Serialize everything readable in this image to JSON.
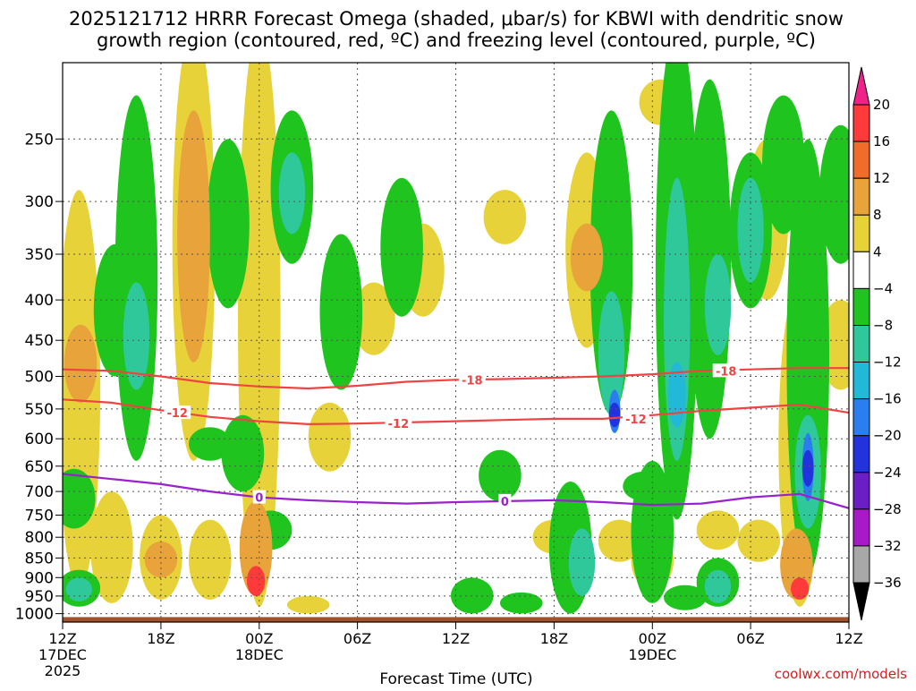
{
  "chart_data": {
    "type": "heatmap",
    "title_lines": [
      "2025121712 HRRR Forecast Omega (shaded, μbar/s) for KBWI with dendritic snow",
      "growth region (contoured, red, ºC) and freezing level (contoured, purple, ºC)"
    ],
    "xlabel": "Forecast Time (UTC)",
    "y_axis_scale": "log-pressure",
    "ylim_hpa": [
      1025,
      200
    ],
    "y_ticks": [
      250,
      300,
      350,
      400,
      450,
      500,
      550,
      600,
      650,
      700,
      750,
      800,
      850,
      900,
      950,
      1000
    ],
    "x_range_hours": [
      0,
      48
    ],
    "x_ticks": [
      {
        "hour": 0,
        "label": "12Z",
        "sub1": "17DEC",
        "sub2": "2025"
      },
      {
        "hour": 6,
        "label": "18Z",
        "sub1": "",
        "sub2": ""
      },
      {
        "hour": 12,
        "label": "00Z",
        "sub1": "18DEC",
        "sub2": ""
      },
      {
        "hour": 18,
        "label": "06Z",
        "sub1": "",
        "sub2": ""
      },
      {
        "hour": 24,
        "label": "12Z",
        "sub1": "",
        "sub2": ""
      },
      {
        "hour": 30,
        "label": "18Z",
        "sub1": "",
        "sub2": ""
      },
      {
        "hour": 36,
        "label": "00Z",
        "sub1": "19DEC",
        "sub2": ""
      },
      {
        "hour": 42,
        "label": "06Z",
        "sub1": "",
        "sub2": ""
      },
      {
        "hour": 48,
        "label": "12Z",
        "sub1": "",
        "sub2": ""
      }
    ],
    "grid": true,
    "colorbar": {
      "labels": [
        "20",
        "16",
        "12",
        "8",
        "4",
        "−4",
        "−8",
        "−12",
        "−16",
        "−20",
        "−24",
        "−28",
        "−32",
        "−36"
      ],
      "colors": [
        "#ff3a3a",
        "#ef6c2a",
        "#e8a33a",
        "#e8d23a",
        "#ffffff",
        "#1fc41f",
        "#2ec89a",
        "#22b8d8",
        "#2a7ef0",
        "#2233dd",
        "#6a1fc4",
        "#a81ac8",
        "#a8a8a8"
      ],
      "top_arrow_color": "#ee2288",
      "bottom_arrow_color": "#000000"
    },
    "contours": [
      {
        "label": "-18",
        "color": "#ee4444",
        "points": [
          [
            0,
            490
          ],
          [
            3,
            492
          ],
          [
            6,
            500
          ],
          [
            9,
            510
          ],
          [
            12,
            515
          ],
          [
            15,
            518
          ],
          [
            18,
            514
          ],
          [
            21,
            508
          ],
          [
            24,
            505
          ],
          [
            27,
            504
          ],
          [
            30,
            502
          ],
          [
            33,
            500
          ],
          [
            36,
            497
          ],
          [
            39,
            492
          ],
          [
            42,
            490
          ],
          [
            45,
            488
          ],
          [
            48,
            488
          ]
        ]
      },
      {
        "label": "-12",
        "color": "#ee4444",
        "points": [
          [
            0,
            535
          ],
          [
            3,
            540
          ],
          [
            6,
            552
          ],
          [
            9,
            563
          ],
          [
            12,
            570
          ],
          [
            15,
            575
          ],
          [
            18,
            574
          ],
          [
            21,
            572
          ],
          [
            24,
            570
          ],
          [
            27,
            568
          ],
          [
            30,
            566
          ],
          [
            33,
            566
          ],
          [
            36,
            560
          ],
          [
            39,
            553
          ],
          [
            42,
            548
          ],
          [
            45,
            543
          ],
          [
            48,
            556
          ]
        ]
      },
      {
        "label": "0",
        "color": "#9922cc",
        "points": [
          [
            0,
            665
          ],
          [
            3,
            675
          ],
          [
            6,
            685
          ],
          [
            9,
            700
          ],
          [
            12,
            712
          ],
          [
            15,
            718
          ],
          [
            18,
            722
          ],
          [
            21,
            725
          ],
          [
            24,
            722
          ],
          [
            27,
            720
          ],
          [
            30,
            718
          ],
          [
            33,
            722
          ],
          [
            36,
            728
          ],
          [
            39,
            725
          ],
          [
            42,
            712
          ],
          [
            45,
            705
          ],
          [
            48,
            735
          ]
        ]
      }
    ],
    "contour_label_positions": [
      {
        "label": "-18",
        "hour": 25,
        "hpa": 505
      },
      {
        "label": "-18",
        "hour": 40.5,
        "hpa": 492
      },
      {
        "label": "-12",
        "hour": 7,
        "hpa": 556
      },
      {
        "label": "-12",
        "hour": 20.5,
        "hpa": 574
      },
      {
        "label": "-12",
        "hour": 35,
        "hpa": 566
      },
      {
        "label": "0",
        "hour": 12,
        "hpa": 712
      },
      {
        "label": "0",
        "hour": 27,
        "hpa": 720
      }
    ],
    "omega_regions_ubar_s": [
      {
        "value": 6,
        "hour": 1,
        "hpa": [
          290,
          930
        ]
      },
      {
        "value": 9,
        "hour": 1.1,
        "hpa": [
          430,
          540
        ]
      },
      {
        "value": -8,
        "hour": 0.7,
        "hpa": [
          655,
          780
        ]
      },
      {
        "value": -8,
        "hour": 1,
        "hpa": [
          880,
          980
        ]
      },
      {
        "value": -12,
        "hour": 1,
        "hpa": [
          900,
          965
        ]
      },
      {
        "value": 6,
        "hour": 3,
        "hpa": [
          700,
          970
        ]
      },
      {
        "value": -8,
        "hour": 3.2,
        "hpa": [
          340,
          500
        ]
      },
      {
        "value": -8,
        "hour": 4.5,
        "hpa": [
          220,
          640
        ]
      },
      {
        "value": -12,
        "hour": 4.5,
        "hpa": [
          380,
          520
        ]
      },
      {
        "value": 6,
        "hour": 6,
        "hpa": [
          750,
          960
        ]
      },
      {
        "value": 10,
        "hour": 6,
        "hpa": [
          810,
          900
        ]
      },
      {
        "value": 6,
        "hour": 8,
        "hpa": [
          180,
          640
        ]
      },
      {
        "value": 9,
        "hour": 8,
        "hpa": [
          230,
          480
        ]
      },
      {
        "value": -8,
        "hour": 9,
        "hpa": [
          580,
          640
        ]
      },
      {
        "value": 6,
        "hour": 9,
        "hpa": [
          760,
          960
        ]
      },
      {
        "value": -8,
        "hour": 10.1,
        "hpa": [
          250,
          410
        ]
      },
      {
        "value": -8,
        "hour": 11,
        "hpa": [
          560,
          700
        ]
      },
      {
        "value": 6,
        "hour": 12,
        "hpa": [
          180,
          980
        ]
      },
      {
        "value": 10,
        "hour": 11.8,
        "hpa": [
          720,
          950
        ]
      },
      {
        "value": 18,
        "hour": 11.8,
        "hpa": [
          870,
          950
        ]
      },
      {
        "value": -8,
        "hour": 14,
        "hpa": [
          230,
          360
        ]
      },
      {
        "value": -12,
        "hour": 14,
        "hpa": [
          260,
          330
        ]
      },
      {
        "value": -8,
        "hour": 12.7,
        "hpa": [
          740,
          830
        ]
      },
      {
        "value": 6,
        "hour": 15,
        "hpa": [
          950,
          1000
        ]
      },
      {
        "value": -8,
        "hour": 17,
        "hpa": [
          330,
          520
        ]
      },
      {
        "value": 6,
        "hour": 16.3,
        "hpa": [
          540,
          660
        ]
      },
      {
        "value": 6,
        "hour": 19,
        "hpa": [
          380,
          470
        ]
      },
      {
        "value": -8,
        "hour": 20.7,
        "hpa": [
          280,
          420
        ]
      },
      {
        "value": 6,
        "hour": 22,
        "hpa": [
          320,
          420
        ]
      },
      {
        "value": -8,
        "hour": 25,
        "hpa": [
          900,
          1000
        ]
      },
      {
        "value": -8,
        "hour": 26.7,
        "hpa": [
          620,
          720
        ]
      },
      {
        "value": 6,
        "hour": 27,
        "hpa": [
          290,
          340
        ]
      },
      {
        "value": -8,
        "hour": 28,
        "hpa": [
          940,
          1000
        ]
      },
      {
        "value": 6,
        "hour": 30,
        "hpa": [
          760,
          840
        ]
      },
      {
        "value": -8,
        "hour": 31,
        "hpa": [
          680,
          1000
        ]
      },
      {
        "value": -12,
        "hour": 31.7,
        "hpa": [
          780,
          950
        ]
      },
      {
        "value": 6,
        "hour": 32,
        "hpa": [
          260,
          460
        ]
      },
      {
        "value": 10,
        "hour": 32,
        "hpa": [
          320,
          390
        ]
      },
      {
        "value": -8,
        "hour": 33.5,
        "hpa": [
          230,
          560
        ]
      },
      {
        "value": -12,
        "hour": 33.5,
        "hpa": [
          390,
          560
        ]
      },
      {
        "value": -20,
        "hour": 33.7,
        "hpa": [
          520,
          590
        ]
      },
      {
        "value": -24,
        "hour": 33.7,
        "hpa": [
          540,
          580
        ]
      },
      {
        "value": 6,
        "hour": 34,
        "hpa": [
          760,
          860
        ]
      },
      {
        "value": -8,
        "hour": 35.5,
        "hpa": [
          660,
          720
        ]
      },
      {
        "value": -8,
        "hour": 36,
        "hpa": [
          640,
          970
        ]
      },
      {
        "value": 6,
        "hour": 36,
        "hpa": [
          790,
          930
        ]
      },
      {
        "value": 6,
        "hour": 36.5,
        "hpa": [
          210,
          240
        ]
      },
      {
        "value": -8,
        "hour": 37.5,
        "hpa": [
          180,
          760
        ]
      },
      {
        "value": -12,
        "hour": 37.5,
        "hpa": [
          280,
          640
        ]
      },
      {
        "value": -16,
        "hour": 37.5,
        "hpa": [
          480,
          580
        ]
      },
      {
        "value": -8,
        "hour": 39.5,
        "hpa": [
          210,
          600
        ]
      },
      {
        "value": -12,
        "hour": 40,
        "hpa": [
          350,
          470
        ]
      },
      {
        "value": -8,
        "hour": 42,
        "hpa": [
          260,
          410
        ]
      },
      {
        "value": -12,
        "hour": 42,
        "hpa": [
          280,
          380
        ]
      },
      {
        "value": -8,
        "hour": 40,
        "hpa": [
          850,
          980
        ]
      },
      {
        "value": -12,
        "hour": 40,
        "hpa": [
          880,
          970
        ]
      },
      {
        "value": -8,
        "hour": 38,
        "hpa": [
          920,
          990
        ]
      },
      {
        "value": 6,
        "hour": 40,
        "hpa": [
          740,
          830
        ]
      },
      {
        "value": 6,
        "hour": 42.5,
        "hpa": [
          760,
          860
        ]
      },
      {
        "value": 6,
        "hour": 43,
        "hpa": [
          250,
          400
        ]
      },
      {
        "value": -8,
        "hour": 44,
        "hpa": [
          220,
          330
        ]
      },
      {
        "value": 6,
        "hour": 45,
        "hpa": [
          380,
          980
        ]
      },
      {
        "value": 10,
        "hour": 44.8,
        "hpa": [
          780,
          960
        ]
      },
      {
        "value": 18,
        "hour": 45,
        "hpa": [
          900,
          960
        ]
      },
      {
        "value": -8,
        "hour": 45.5,
        "hpa": [
          250,
          890
        ]
      },
      {
        "value": -12,
        "hour": 45.5,
        "hpa": [
          560,
          780
        ]
      },
      {
        "value": -20,
        "hour": 45.5,
        "hpa": [
          590,
          720
        ]
      },
      {
        "value": -24,
        "hour": 45.5,
        "hpa": [
          620,
          690
        ]
      },
      {
        "value": 6,
        "hour": 47.5,
        "hpa": [
          400,
          520
        ]
      },
      {
        "value": -8,
        "hour": 47.5,
        "hpa": [
          240,
          360
        ]
      }
    ],
    "ground": {
      "color": "#a0522d",
      "top_hpa": 1010
    }
  },
  "footer": {
    "xlabel": "Forecast Time (UTC)",
    "credit": "coolwx.com/models"
  }
}
